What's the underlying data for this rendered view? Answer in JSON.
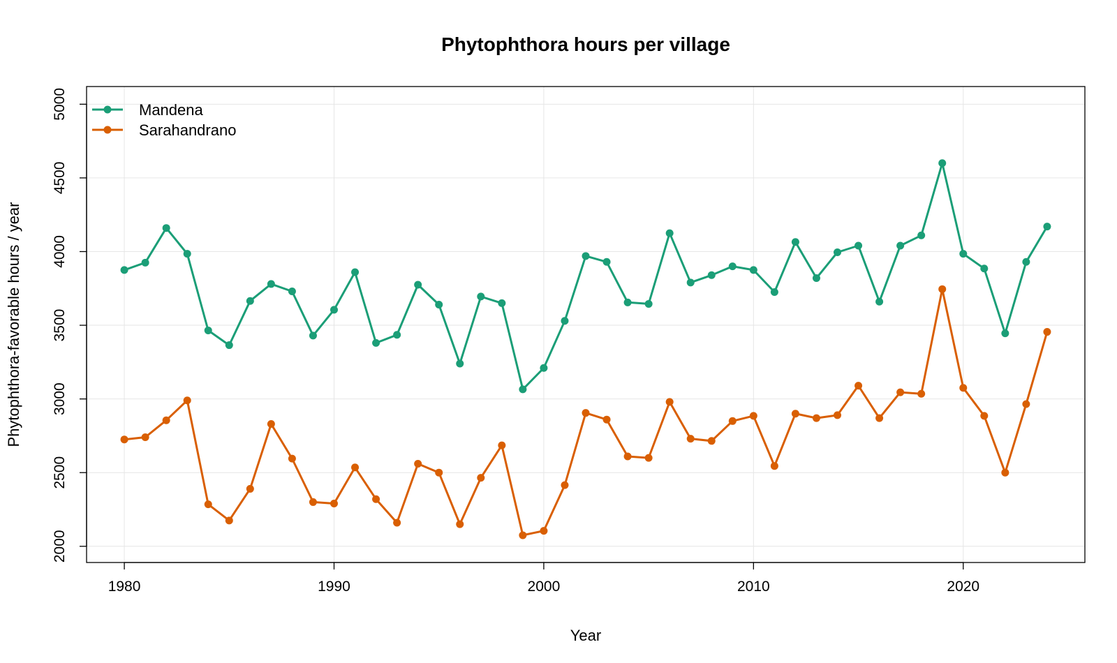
{
  "chart_data": {
    "type": "line",
    "title": "Phytophthora hours per village",
    "xlabel": "Year",
    "ylabel": "Phytophthora-favorable hours / year",
    "xlim": [
      1978.2,
      2025.8
    ],
    "ylim": [
      1890,
      5120
    ],
    "x_ticks": [
      1980,
      1990,
      2000,
      2010,
      2020
    ],
    "y_ticks": [
      2000,
      2500,
      3000,
      3500,
      4000,
      4500,
      5000
    ],
    "grid": true,
    "legend_position": "top-left",
    "x": [
      1980,
      1981,
      1982,
      1983,
      1984,
      1985,
      1986,
      1987,
      1988,
      1989,
      1990,
      1991,
      1992,
      1993,
      1994,
      1995,
      1996,
      1997,
      1998,
      1999,
      2000,
      2001,
      2002,
      2003,
      2004,
      2005,
      2006,
      2007,
      2008,
      2009,
      2010,
      2011,
      2012,
      2013,
      2014,
      2015,
      2016,
      2017,
      2018,
      2019,
      2020,
      2021,
      2022,
      2023,
      2024
    ],
    "series": [
      {
        "name": "Mandena",
        "color": "#1b9e77",
        "values": [
          3875,
          3925,
          4160,
          3985,
          3465,
          3365,
          3665,
          3780,
          3730,
          3430,
          3605,
          3860,
          3380,
          3435,
          3775,
          3640,
          3240,
          3695,
          3650,
          3065,
          3210,
          3530,
          3970,
          3930,
          3655,
          3645,
          4125,
          3790,
          3840,
          3900,
          3875,
          3725,
          4065,
          3820,
          3995,
          4040,
          3660,
          4040,
          4110,
          4600,
          3985,
          3885,
          3445,
          3930,
          4170
        ]
      },
      {
        "name": "Sarahandrano",
        "color": "#d95f02",
        "values": [
          2725,
          2740,
          2855,
          2990,
          2285,
          2175,
          2390,
          2830,
          2595,
          2300,
          2290,
          2535,
          2320,
          2160,
          2560,
          2500,
          2150,
          2465,
          2685,
          2075,
          2105,
          2415,
          2905,
          2860,
          2610,
          2600,
          2980,
          2730,
          2715,
          2850,
          2885,
          2545,
          2900,
          2870,
          2890,
          3090,
          2870,
          3045,
          3035,
          3745,
          3075,
          2885,
          2500,
          2965,
          3455
        ]
      }
    ]
  }
}
